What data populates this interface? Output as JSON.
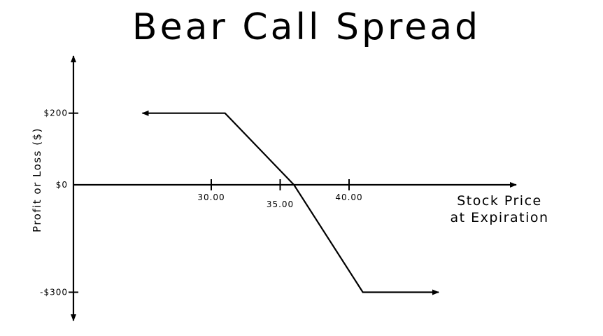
{
  "chart_data": {
    "type": "line",
    "title": "Bear Call Spread",
    "xlabel_lines": [
      "Stock Price",
      "at Expiration"
    ],
    "ylabel": "Profit or Loss ($)",
    "x_ticks": [
      {
        "value": 30,
        "label": "30.00"
      },
      {
        "value": 35,
        "label": "35.00"
      },
      {
        "value": 40,
        "label": "40.00"
      }
    ],
    "y_ticks": [
      {
        "value": 200,
        "label": "$200"
      },
      {
        "value": 0,
        "label": "$0"
      },
      {
        "value": -300,
        "label": "-$300"
      }
    ],
    "series": [
      {
        "points": [
          [
            25,
            200
          ],
          [
            31,
            200
          ],
          [
            36,
            0
          ],
          [
            41,
            -300
          ],
          [
            46.5,
            -300
          ]
        ]
      }
    ],
    "xlim": [
      20,
      52
    ],
    "ylim": [
      -370,
      340
    ],
    "grid": false,
    "legend": false
  }
}
